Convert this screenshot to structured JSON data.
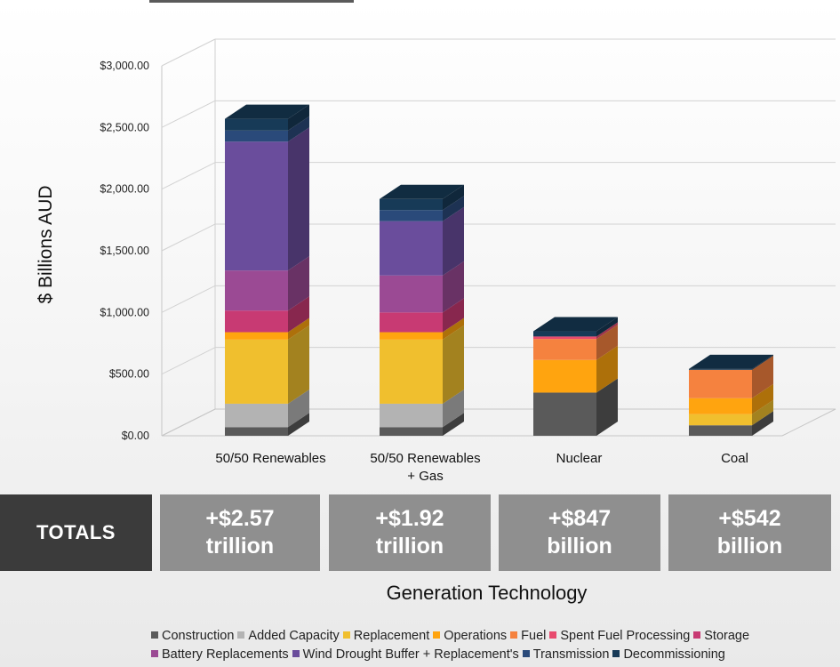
{
  "chart_data": {
    "type": "bar",
    "stacked": true,
    "three_d": true,
    "title": "",
    "xlabel": "Generation Technology",
    "ylabel": "$ Billions AUD",
    "ylim": [
      0,
      3000
    ],
    "yticks": [
      "$0.00",
      "$500.00",
      "$1,000.00",
      "$1,500.00",
      "$2,000.00",
      "$2,500.00",
      "$3,000.00"
    ],
    "ytick_values": [
      0,
      500,
      1000,
      1500,
      2000,
      2500,
      3000
    ],
    "grid": true,
    "legend_position": "bottom",
    "categories": [
      {
        "line1": "50/50 Renewables",
        "line2": ""
      },
      {
        "line1": "50/50 Renewables",
        "line2": "+ Gas"
      },
      {
        "line1": "Nuclear",
        "line2": ""
      },
      {
        "line1": "Coal",
        "line2": ""
      }
    ],
    "series": [
      {
        "name": "Construction",
        "color": "#5a5a5a",
        "values": [
          70,
          70,
          350,
          85
        ]
      },
      {
        "name": "Added Capacity",
        "color": "#b3b3b3",
        "values": [
          190,
          190,
          0,
          0
        ]
      },
      {
        "name": "Replacement",
        "color": "#f0bf2e",
        "values": [
          520,
          520,
          0,
          90
        ]
      },
      {
        "name": "Operations",
        "color": "#ffa40f",
        "values": [
          60,
          60,
          265,
          130
        ]
      },
      {
        "name": "Fuel",
        "color": "#f5823f",
        "values": [
          0,
          0,
          170,
          230
        ]
      },
      {
        "name": "Spent Fuel Processing",
        "color": "#e84a6e",
        "values": [
          0,
          0,
          20,
          0
        ]
      },
      {
        "name": "Storage",
        "color": "#c83a73",
        "values": [
          175,
          160,
          0,
          0
        ]
      },
      {
        "name": "Battery Replacements",
        "color": "#9b4a94",
        "values": [
          325,
          300,
          0,
          0
        ]
      },
      {
        "name": "Wind Drought Buffer + Replacement's",
        "color": "#6a4d9c",
        "values": [
          1045,
          440,
          0,
          0
        ]
      },
      {
        "name": "Transmission",
        "color": "#2a4a7a",
        "values": [
          90,
          90,
          0,
          0
        ]
      },
      {
        "name": "Decommissioning",
        "color": "#173a57",
        "values": [
          95,
          90,
          42,
          7
        ]
      }
    ]
  },
  "totals": {
    "label": "TOTALS",
    "items": [
      {
        "line1": "+$2.57",
        "line2": "trillion"
      },
      {
        "line1": "+$1.92",
        "line2": "trillion"
      },
      {
        "line1": "+$847",
        "line2": "billion"
      },
      {
        "line1": "+$542",
        "line2": "billion"
      }
    ]
  },
  "legend_lines": [
    [
      0,
      1,
      2,
      3,
      4,
      5,
      6
    ],
    [
      7,
      8,
      9,
      10
    ]
  ]
}
